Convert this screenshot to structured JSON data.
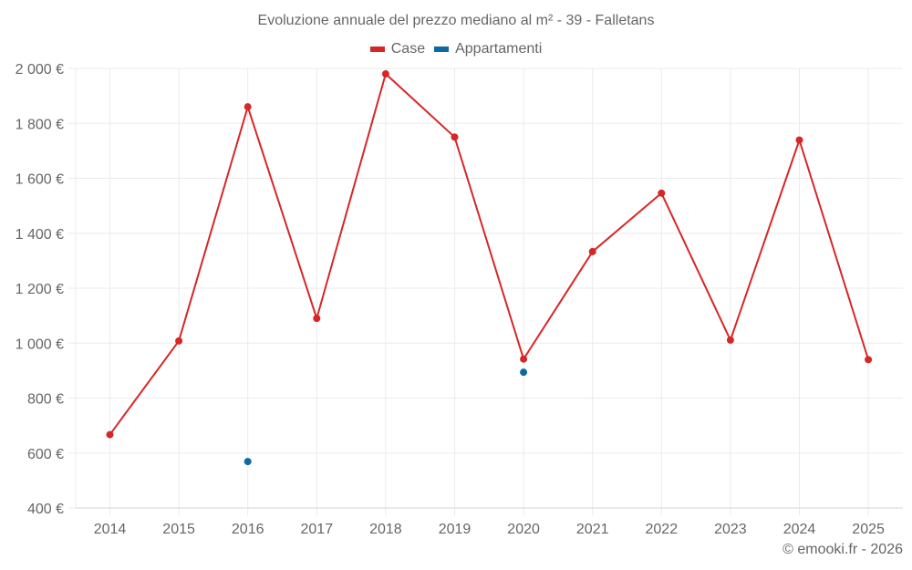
{
  "chart": {
    "title": "Evoluzione annuale del prezzo mediano al m² - 39 - Falletans",
    "credit": "© emooki.fr - 2026",
    "legend": [
      {
        "label": "Case",
        "color": "#d62728"
      },
      {
        "label": "Appartamenti",
        "color": "#0a6aa1"
      }
    ]
  },
  "chart_data": {
    "type": "line",
    "title": "Evoluzione annuale del prezzo mediano al m² - 39 - Falletans",
    "xlabel": "",
    "ylabel": "",
    "categories": [
      "2014",
      "2015",
      "2016",
      "2017",
      "2018",
      "2019",
      "2020",
      "2021",
      "2022",
      "2023",
      "2024",
      "2025"
    ],
    "series": [
      {
        "name": "Case",
        "color": "#d62728",
        "values": [
          667,
          1008,
          1860,
          1090,
          1980,
          1750,
          942,
          1333,
          1546,
          1011,
          1739,
          940
        ]
      },
      {
        "name": "Appartamenti",
        "color": "#0a6aa1",
        "values": [
          null,
          null,
          569,
          null,
          null,
          null,
          894,
          null,
          null,
          null,
          null,
          null
        ]
      }
    ],
    "ylim": [
      400,
      2000
    ],
    "yticks": [
      400,
      600,
      800,
      1000,
      1200,
      1400,
      1600,
      1800,
      2000
    ],
    "ytick_labels": [
      "400 €",
      "600 €",
      "800 €",
      "1 000 €",
      "1 200 €",
      "1 400 €",
      "1 600 €",
      "1 800 €",
      "2 000 €"
    ],
    "grid": true,
    "legend_position": "top"
  }
}
